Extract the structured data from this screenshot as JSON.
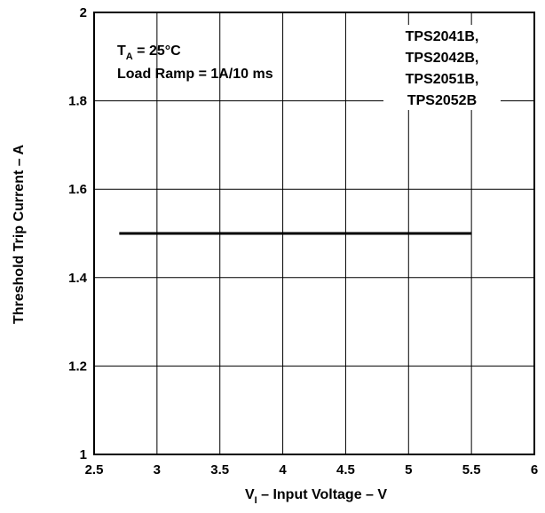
{
  "chart_data": {
    "type": "line",
    "xlabel": {
      "prefix": "V",
      "subscript": "I",
      "suffix": " – Input Voltage – V"
    },
    "ylabel": "Threshold Trip Current – A",
    "xlim": [
      2.5,
      6
    ],
    "ylim": [
      1,
      2
    ],
    "xticks": [
      "2.5",
      "3",
      "3.5",
      "4",
      "4.5",
      "5",
      "5.5",
      "6"
    ],
    "yticks": [
      "1",
      "1.2",
      "1.4",
      "1.6",
      "1.8",
      "2"
    ],
    "grid": true,
    "conditions": {
      "line1": {
        "prefix": "T",
        "subscript": "A",
        "suffix": " = 25°C"
      },
      "line2": "Load Ramp = 1A/10 ms"
    },
    "legend": {
      "placement": "top-right",
      "entries": [
        "TPS2041B,",
        "TPS2042B,",
        "TPS2051B,",
        "TPS2052B"
      ]
    },
    "series": [
      {
        "x": [
          2.7,
          5.5
        ],
        "y": [
          1.5,
          1.5
        ]
      }
    ]
  }
}
